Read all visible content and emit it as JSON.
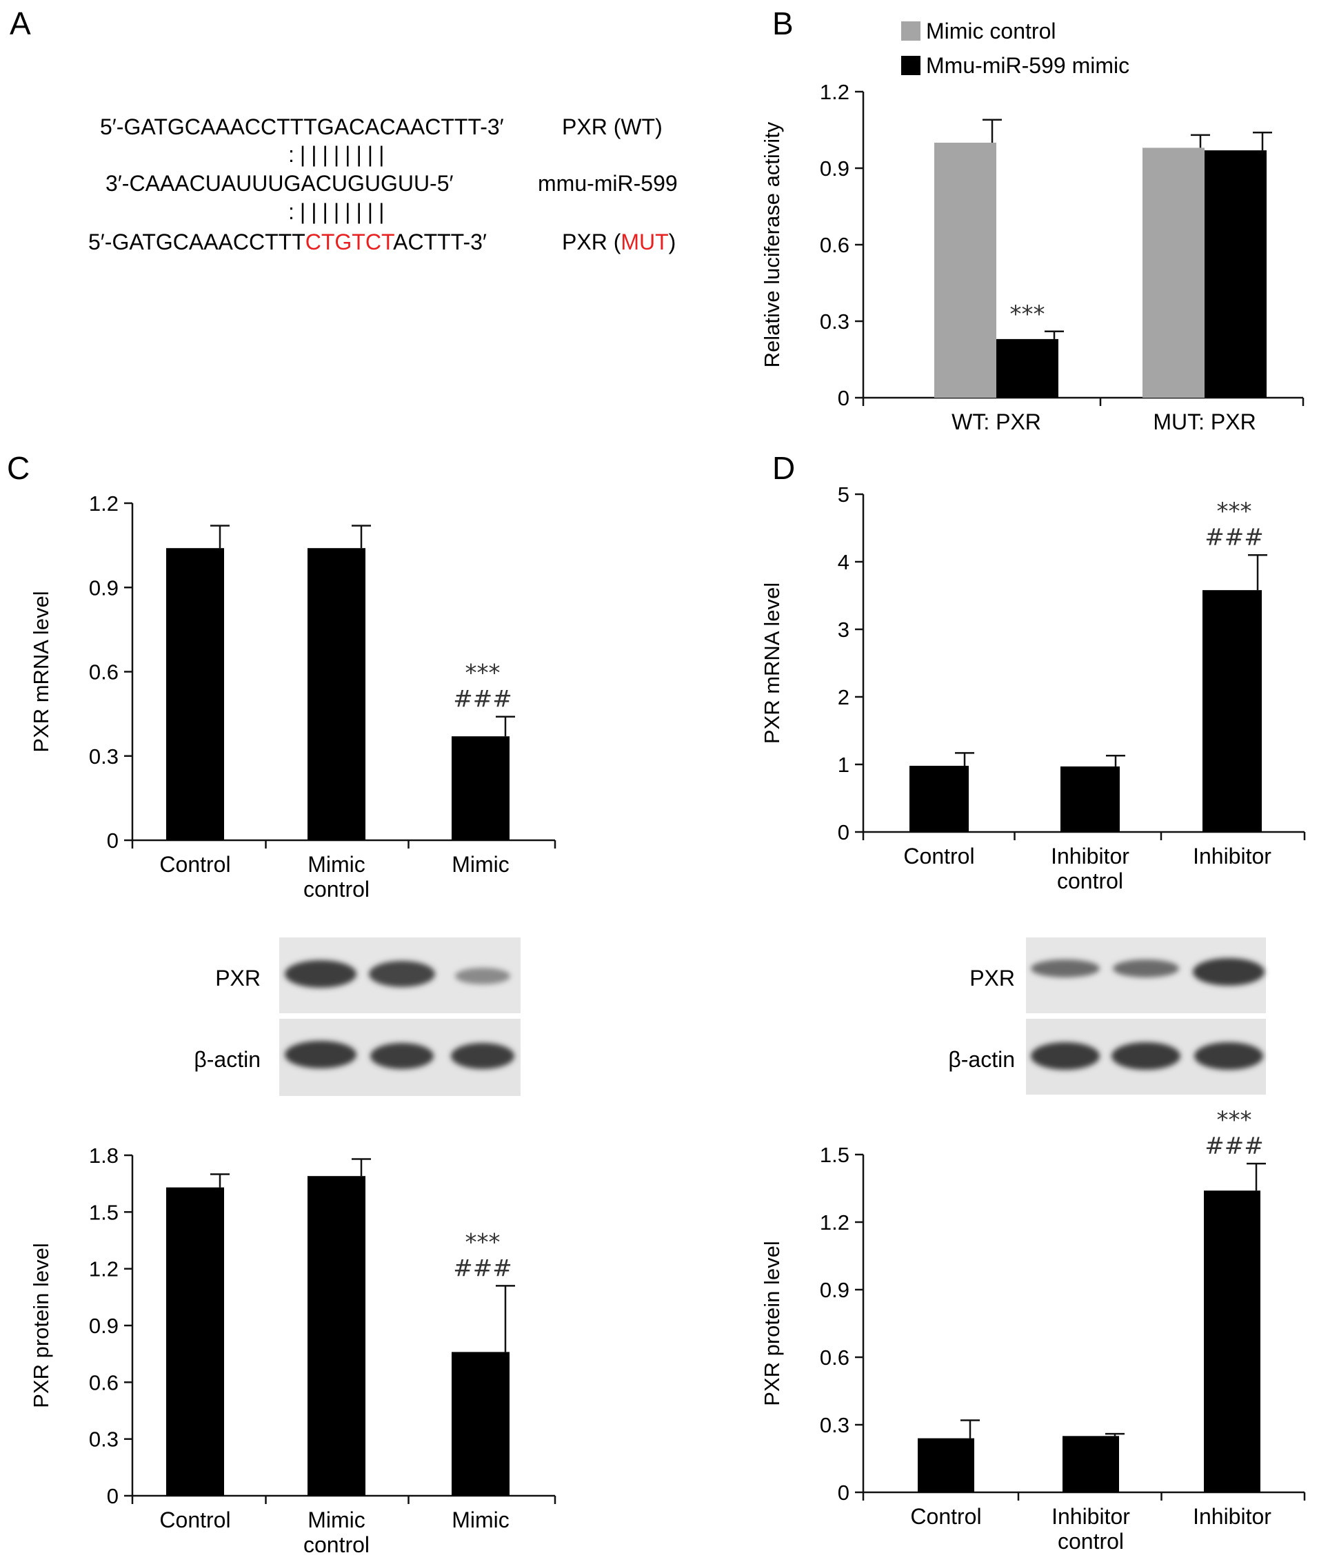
{
  "panels": {
    "a": "A",
    "b": "B",
    "c": "C",
    "d": "D"
  },
  "panel_a": {
    "wt_seq": {
      "prefix": "5′-GATGCAAACCTTTGACACAACTTT-3′",
      "label": "PXR (WT)"
    },
    "pairing_1": ":||||||||",
    "mirna": {
      "seq": "3′-CAAACUAUUUGACUGUGUU-5′",
      "label": "mmu-miR-599"
    },
    "pairing_2": ":||||||||",
    "mut_seq": {
      "part1": "5′-GATGCAAACCTTT",
      "mutated": "CTGTCT",
      "part2": "ACTTT-3′",
      "label_pre": "PXR (",
      "label_mut": "MUT",
      "label_post": ")"
    },
    "mutation_color": "#e8201f"
  },
  "blots": {
    "c": {
      "row1": "PXR",
      "row2": "β-actin"
    },
    "d": {
      "row1": "PXR",
      "row2": "β-actin"
    }
  },
  "chart_data": [
    {
      "id": "B",
      "type": "bar",
      "categories": [
        "WT: PXR",
        "MUT: PXR"
      ],
      "series": [
        {
          "name": "Mimic control",
          "values": [
            1.0,
            0.98
          ],
          "errors": [
            0.09,
            0.05
          ],
          "color": "#a5a5a5"
        },
        {
          "name": "Mmu-miR-599 mimic",
          "values": [
            0.23,
            0.97
          ],
          "errors": [
            0.03,
            0.07
          ],
          "color": "#000000"
        }
      ],
      "annotations": [
        {
          "category": 0,
          "series": 1,
          "text": "***"
        }
      ],
      "ylabel": "Relative luciferase activity",
      "ylim": [
        0,
        1.2
      ],
      "yticks": [
        "0",
        "0.3",
        "0.6",
        "0.9",
        "1.2"
      ],
      "legend": "top"
    },
    {
      "id": "C-mRNA",
      "type": "bar",
      "categories": [
        "Control",
        "Mimic\ncontrol",
        "Mimic"
      ],
      "values": [
        1.04,
        1.04,
        0.37
      ],
      "errors": [
        0.08,
        0.08,
        0.07
      ],
      "sig": [
        null,
        null,
        [
          "***",
          "###"
        ]
      ],
      "ylabel": "PXR mRNA level",
      "ylim": [
        0,
        1.2
      ],
      "yticks": [
        "0",
        "0.3",
        "0.6",
        "0.9",
        "1.2"
      ]
    },
    {
      "id": "C-protein",
      "type": "bar",
      "categories": [
        "Control",
        "Mimic\ncontrol",
        "Mimic"
      ],
      "values": [
        1.63,
        1.69,
        0.76
      ],
      "errors": [
        0.07,
        0.09,
        0.35
      ],
      "sig": [
        null,
        null,
        [
          "***",
          "###"
        ]
      ],
      "ylabel": "PXR protein level",
      "ylim": [
        0,
        1.8
      ],
      "yticks": [
        "0",
        "0.3",
        "0.6",
        "0.9",
        "1.2",
        "1.5",
        "1.8"
      ]
    },
    {
      "id": "D-mRNA",
      "type": "bar",
      "categories": [
        "Control",
        "Inhibitor\ncontrol",
        "Inhibitor"
      ],
      "values": [
        0.98,
        0.97,
        3.58
      ],
      "errors": [
        0.19,
        0.16,
        0.52
      ],
      "sig": [
        null,
        null,
        [
          "***",
          "###"
        ]
      ],
      "ylabel": "PXR mRNA level",
      "ylim": [
        0,
        5
      ],
      "yticks": [
        "0",
        "1",
        "2",
        "3",
        "4",
        "5"
      ]
    },
    {
      "id": "D-protein",
      "type": "bar",
      "categories": [
        "Control",
        "Inhibitor\ncontrol",
        "Inhibitor"
      ],
      "values": [
        0.24,
        0.25,
        1.34
      ],
      "errors": [
        0.08,
        0.01,
        0.12
      ],
      "sig": [
        null,
        null,
        [
          "***",
          "###"
        ]
      ],
      "ylabel": "PXR protein level",
      "ylim": [
        0,
        1.5
      ],
      "yticks": [
        "0",
        "0.3",
        "0.6",
        "0.9",
        "1.2",
        "1.5"
      ]
    }
  ]
}
